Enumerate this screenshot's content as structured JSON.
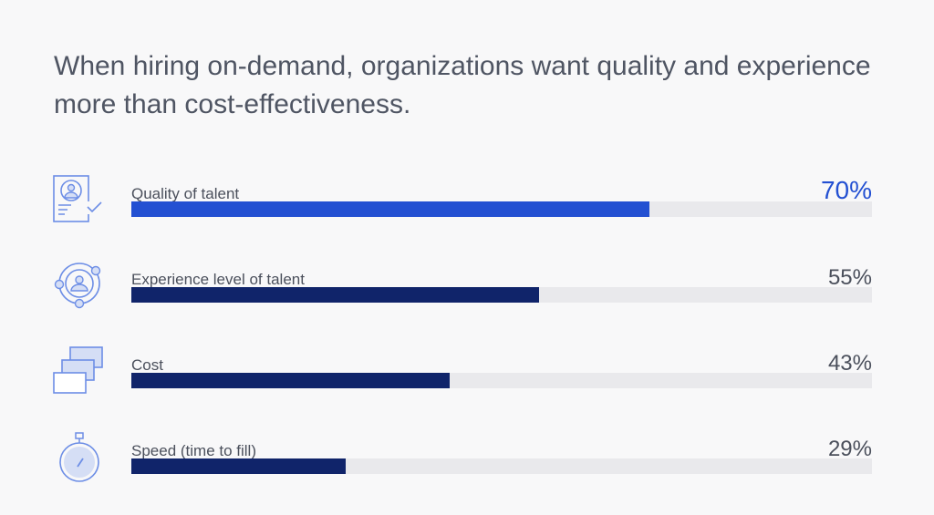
{
  "title": "When hiring on-demand, organizations want quality and experience more than cost-effectiveness.",
  "chart_data": {
    "type": "bar",
    "orientation": "horizontal",
    "categories": [
      "Quality of talent",
      "Experience level of talent",
      "Cost",
      "Speed (time to fill)"
    ],
    "values": [
      70,
      55,
      43,
      29
    ],
    "value_labels": [
      "70%",
      "55%",
      "43%",
      "29%"
    ],
    "icons": [
      "profile-check-icon",
      "person-orbit-icon",
      "stacked-windows-icon",
      "stopwatch-icon"
    ],
    "xlim": [
      0,
      100
    ],
    "colors": {
      "highlight": "#2350d2",
      "default": "#10246a",
      "track": "#e9e9ec"
    }
  }
}
